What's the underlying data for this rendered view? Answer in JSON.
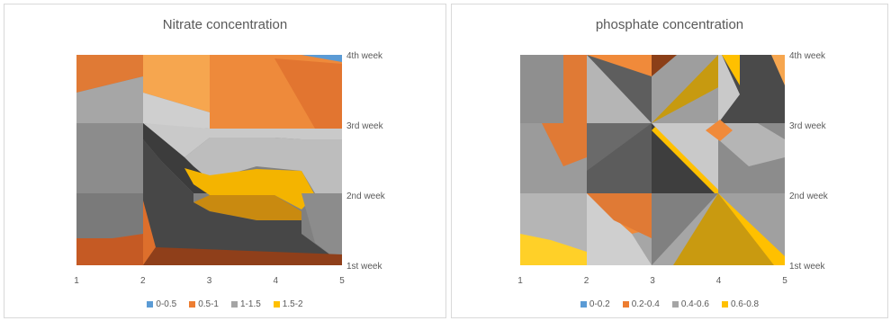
{
  "colors": {
    "band1": "#5b9bd5",
    "band2": "#ed7d31",
    "band3": "#a5a5a5",
    "band4": "#ffc000"
  },
  "chart_data": [
    {
      "type": "surface-contour",
      "title": "Nitrate  concentration",
      "x": [
        1,
        2,
        3,
        4,
        5
      ],
      "series_axis": [
        "1st week",
        "2nd week",
        "3rd week",
        "4th week"
      ],
      "legend": [
        {
          "label": "0-0.5",
          "color": "#5b9bd5"
        },
        {
          "label": "0.5-1",
          "color": "#ed7d31"
        },
        {
          "label": "1-1.5",
          "color": "#a5a5a5"
        },
        {
          "label": "1.5-2",
          "color": "#ffc000"
        }
      ]
    },
    {
      "type": "surface-contour",
      "title": "phosphate concentration",
      "x": [
        1,
        2,
        3,
        4,
        5
      ],
      "series_axis": [
        "1st week",
        "2nd week",
        "3rd week",
        "4th week"
      ],
      "legend": [
        {
          "label": "0-0.2",
          "color": "#5b9bd5"
        },
        {
          "label": "0.2-0.4",
          "color": "#ed7d31"
        },
        {
          "label": "0.4-0.6",
          "color": "#a5a5a5"
        },
        {
          "label": "0.6-0.8",
          "color": "#ffc000"
        }
      ]
    }
  ]
}
